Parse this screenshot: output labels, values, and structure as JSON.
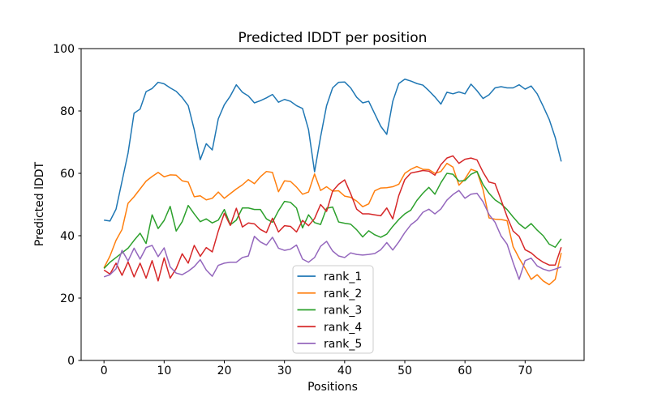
{
  "figure": {
    "title": "Predicted lDDT per position",
    "xlabel": "Positions",
    "ylabel": "Predicted lDDT",
    "background": "#ffffff",
    "axis_color": "#000000",
    "legend_border_color": "#cccccc",
    "legend_background": "#ffffff"
  },
  "chart_data": {
    "type": "line",
    "title": "Predicted lDDT per position",
    "xlabel": "Positions",
    "ylabel": "Predicted lDDT",
    "xlim": [
      -3.8,
      79.8
    ],
    "ylim": [
      0,
      100
    ],
    "xticks": [
      0,
      10,
      20,
      30,
      40,
      50,
      60,
      70
    ],
    "yticks": [
      0,
      20,
      40,
      60,
      80,
      100
    ],
    "grid": false,
    "legend_position": "inside lower-center",
    "x": [
      0,
      1,
      2,
      3,
      4,
      5,
      6,
      7,
      8,
      9,
      10,
      11,
      12,
      13,
      14,
      15,
      16,
      17,
      18,
      19,
      20,
      21,
      22,
      23,
      24,
      25,
      26,
      27,
      28,
      29,
      30,
      31,
      32,
      33,
      34,
      35,
      36,
      37,
      38,
      39,
      40,
      41,
      42,
      43,
      44,
      45,
      46,
      47,
      48,
      49,
      50,
      51,
      52,
      53,
      54,
      55,
      56,
      57,
      58,
      59,
      60,
      61,
      62,
      63,
      64,
      65,
      66,
      67,
      68,
      69,
      70,
      71,
      72,
      73,
      74,
      75,
      76
    ],
    "series": [
      {
        "name": "rank_1",
        "color": "#1f77b4",
        "values": [
          45.0,
          44.7,
          48.5,
          57.5,
          66.5,
          79.3,
          80.6,
          86.2,
          87.2,
          89.2,
          88.7,
          87.4,
          86.3,
          84.3,
          81.7,
          74.0,
          64.4,
          69.5,
          67.5,
          77.5,
          82.0,
          84.8,
          88.4,
          86.0,
          84.8,
          82.6,
          83.3,
          84.2,
          85.3,
          82.8,
          83.7,
          83.1,
          81.7,
          80.8,
          74.0,
          60.5,
          71.7,
          81.7,
          87.4,
          89.2,
          89.3,
          87.4,
          84.4,
          82.6,
          83.1,
          79.1,
          75.1,
          72.5,
          83.1,
          88.8,
          90.2,
          89.6,
          88.8,
          88.3,
          86.5,
          84.5,
          82.2,
          86.0,
          85.5,
          86.1,
          85.5,
          88.6,
          86.5,
          84.0,
          85.2,
          87.4,
          87.8,
          87.4,
          87.4,
          88.4,
          87.0,
          88.0,
          85.5,
          81.5,
          77.3,
          71.5,
          63.8
        ]
      },
      {
        "name": "rank_2",
        "color": "#ff7f0e",
        "values": [
          29.7,
          33.5,
          38.5,
          42.0,
          50.4,
          52.5,
          55.0,
          57.5,
          59.0,
          60.3,
          58.9,
          59.5,
          59.4,
          57.6,
          57.2,
          52.5,
          52.8,
          51.5,
          52.0,
          54.0,
          52.0,
          53.5,
          55.0,
          56.3,
          58.0,
          56.7,
          58.9,
          60.6,
          60.3,
          54.1,
          57.6,
          57.4,
          55.6,
          53.3,
          54.0,
          59.8,
          54.5,
          55.7,
          54.3,
          54.4,
          52.7,
          52.3,
          51.1,
          49.3,
          50.2,
          54.4,
          55.3,
          55.4,
          55.7,
          56.5,
          60.0,
          61.3,
          62.2,
          61.3,
          61.2,
          60.0,
          60.6,
          63.2,
          62.0,
          56.2,
          58.2,
          61.3,
          60.6,
          54.8,
          45.7,
          45.3,
          45.2,
          44.8,
          36.5,
          32.8,
          29.5,
          26.0,
          27.5,
          25.5,
          24.3,
          26.0,
          34.5
        ]
      },
      {
        "name": "rank_3",
        "color": "#2ca02c",
        "values": [
          29.5,
          31.5,
          33.0,
          34.5,
          36.0,
          38.5,
          40.8,
          37.5,
          46.7,
          42.3,
          44.9,
          49.4,
          41.5,
          44.5,
          49.7,
          47.0,
          44.5,
          45.4,
          44.1,
          45.0,
          48.4,
          43.5,
          45.0,
          48.9,
          48.9,
          48.4,
          48.4,
          45.4,
          44.3,
          48.0,
          51.0,
          50.7,
          48.9,
          42.5,
          46.7,
          44.2,
          43.6,
          48.8,
          49.2,
          44.4,
          44.0,
          43.7,
          41.9,
          39.6,
          41.6,
          40.3,
          39.5,
          40.5,
          43.0,
          45.2,
          47.0,
          48.2,
          51.3,
          53.6,
          55.5,
          53.3,
          57.0,
          60.0,
          59.7,
          57.5,
          57.7,
          59.7,
          60.6,
          56.4,
          53.6,
          51.5,
          50.2,
          48.4,
          46.0,
          43.8,
          42.3,
          43.9,
          41.8,
          40.0,
          37.3,
          36.3,
          39.0
        ]
      },
      {
        "name": "rank_4",
        "color": "#d62728",
        "values": [
          29.0,
          27.7,
          31.2,
          27.3,
          31.6,
          26.8,
          31.2,
          26.4,
          32.0,
          25.5,
          32.9,
          26.4,
          29.5,
          34.2,
          31.2,
          36.9,
          33.4,
          36.2,
          34.8,
          41.5,
          47.2,
          43.3,
          48.8,
          42.8,
          44.1,
          43.8,
          42.0,
          41.0,
          45.6,
          41.2,
          43.2,
          43.0,
          41.2,
          44.9,
          43.2,
          45.5,
          50.0,
          47.8,
          54.3,
          56.5,
          57.9,
          53.5,
          48.5,
          47.0,
          47.0,
          46.7,
          46.4,
          48.9,
          45.4,
          52.9,
          58.0,
          60.1,
          60.5,
          60.9,
          60.7,
          59.4,
          62.8,
          64.9,
          65.6,
          63.2,
          64.5,
          64.9,
          64.3,
          60.4,
          57.2,
          56.7,
          51.5,
          46.1,
          41.5,
          39.8,
          35.5,
          34.5,
          32.8,
          31.5,
          30.6,
          30.6,
          36.3
        ]
      },
      {
        "name": "rank_5",
        "color": "#9467bd",
        "values": [
          26.8,
          27.5,
          29.4,
          35.3,
          31.9,
          36.0,
          32.5,
          36.2,
          36.9,
          33.3,
          36.1,
          30.0,
          28.0,
          27.5,
          28.6,
          30.1,
          32.3,
          29.0,
          27.0,
          30.5,
          31.2,
          31.5,
          31.5,
          33.0,
          33.5,
          39.8,
          38.0,
          37.0,
          39.5,
          36.0,
          35.3,
          35.7,
          37.0,
          32.5,
          31.5,
          33.0,
          36.6,
          38.2,
          35.1,
          33.5,
          33.0,
          34.5,
          34.0,
          33.8,
          34.0,
          34.3,
          35.5,
          37.8,
          35.4,
          38.0,
          41.0,
          43.5,
          45.0,
          47.5,
          48.5,
          47.0,
          48.6,
          51.4,
          53.2,
          54.5,
          52.0,
          53.3,
          53.6,
          50.9,
          46.8,
          44.3,
          39.9,
          37.3,
          31.4,
          26.0,
          32.0,
          32.8,
          30.3,
          29.3,
          28.7,
          29.3,
          30.0
        ]
      }
    ]
  }
}
